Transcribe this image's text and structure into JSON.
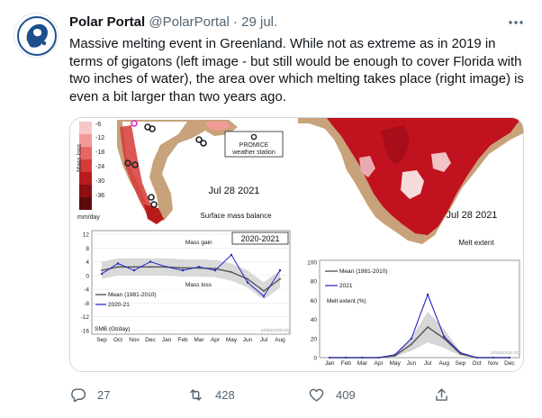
{
  "tweet": {
    "author_name": "Polar Portal",
    "handle": "@PolarPortal",
    "separator": "·",
    "date": "29 jul.",
    "more_icon": "more-dots-icon",
    "text": "Massive melting event in Greenland. While not as extreme as in 2019 in terms of gigatons (left image - but still would be enough to cover Florida with two inches of water), the area over which melting takes place (right image) is even a bit larger than two years ago."
  },
  "media_left": {
    "map": {
      "legend_title": "Mass loss",
      "legend_ticks": [
        "-6",
        "-12",
        "-18",
        "-24",
        "-30",
        "-36"
      ],
      "legend_unit": "mm/day",
      "station_label_1": "PROMICE",
      "station_label_2": "weather station",
      "date": "Jul 28 2021",
      "caption": "Surface mass balance"
    },
    "chart": {
      "series_label": "2020-2021",
      "annotation_gain": "Mass gain",
      "annotation_loss": "Mass loss",
      "legend_mean": "Mean (1981-2010)",
      "legend_current": "2020-21",
      "ylabel": "SMB (Gt/day)",
      "watermark": "polarportal.org"
    }
  },
  "media_right": {
    "map": {
      "date": "Jul 28 2021",
      "caption": "Melt extent"
    },
    "chart": {
      "legend_mean": "Mean (1981-2010)",
      "legend_current": "2021",
      "ylabel": "Melt extent (%)",
      "watermark": "polarportal.org"
    }
  },
  "chart_data": [
    {
      "type": "line",
      "title": "2020-2021",
      "ylabel": "SMB (Gt/day)",
      "ylim": [
        -16,
        12
      ],
      "yticks": [
        12,
        8,
        4,
        0,
        -4,
        -8,
        -12,
        -16
      ],
      "categories": [
        "Sep",
        "Oct",
        "Nov",
        "Dec",
        "Jan",
        "Feb",
        "Mar",
        "Apr",
        "May",
        "Jun",
        "Jul",
        "Aug"
      ],
      "series": [
        {
          "name": "Mean (1981-2010)",
          "color": "#555555",
          "values": [
            1.5,
            2.5,
            2.5,
            2.5,
            2.5,
            2.2,
            2.2,
            2.0,
            1.0,
            -1.0,
            -4.5,
            -1.0
          ]
        },
        {
          "name": "2020-21",
          "color": "#2323c8",
          "values": [
            0.5,
            3.5,
            1.5,
            4.0,
            2.5,
            1.5,
            2.5,
            1.5,
            6.0,
            -2.0,
            -6.0,
            1.5
          ]
        }
      ]
    },
    {
      "type": "line",
      "ylabel": "Melt extent (%)",
      "ylim": [
        0,
        100
      ],
      "yticks": [
        100,
        80,
        60,
        40,
        20,
        0
      ],
      "categories": [
        "Jan",
        "Feb",
        "Mar",
        "Apr",
        "May",
        "Jun",
        "Jul",
        "Aug",
        "Sep",
        "Oct",
        "Nov",
        "Dec"
      ],
      "series": [
        {
          "name": "Mean (1981-2010)",
          "color": "#555555",
          "values": [
            0,
            0,
            0,
            0,
            2,
            14,
            32,
            20,
            4,
            0,
            0,
            0
          ]
        },
        {
          "name": "2021",
          "color": "#2323c8",
          "values": [
            0,
            0,
            0,
            0,
            3,
            20,
            66,
            22,
            5,
            0,
            0,
            0
          ]
        }
      ]
    }
  ],
  "actions": {
    "reply_count": "27",
    "retweet_count": "428",
    "like_count": "409",
    "reply_icon": "reply-icon",
    "retweet_icon": "retweet-icon",
    "like_icon": "heart-icon",
    "share_icon": "share-icon"
  },
  "colors": {
    "text_primary": "#0f1419",
    "text_secondary": "#536471",
    "border": "#cfd9de",
    "melt_red": "#c1121f",
    "land_tan": "#c8a27a",
    "line_blue": "#2323c8"
  }
}
